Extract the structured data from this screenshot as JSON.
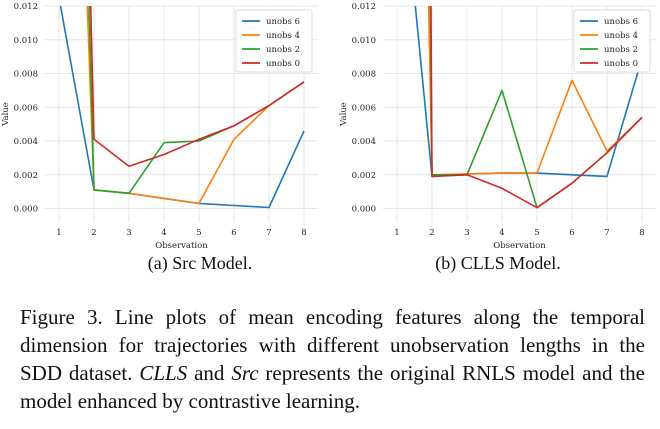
{
  "chart_data": [
    {
      "type": "line",
      "x": [
        1,
        2,
        3,
        4,
        5,
        6,
        7,
        8
      ],
      "xlabel": "Observation",
      "ylabel": "Value",
      "ylim": [
        -0.0008,
        0.012
      ],
      "yticks": [
        "0.000",
        "0.002",
        "0.004",
        "0.006",
        "0.008",
        "0.010",
        "0.012"
      ],
      "legend_position": "top-right",
      "grid": true,
      "series": [
        {
          "name": "unobs 6",
          "color": "#1f77b4",
          "points": [
            [
              1,
              0.0125
            ],
            [
              2,
              0.0011
            ],
            [
              3,
              0.0009
            ],
            [
              4,
              0.0006
            ],
            [
              5,
              0.0003
            ],
            [
              6,
              0.00018
            ],
            [
              7,
              6e-05
            ],
            [
              8,
              0.0046
            ]
          ]
        },
        {
          "name": "unobs 4",
          "color": "#ff7f0e",
          "points": [
            [
              1.8,
              0.0125
            ],
            [
              2,
              0.0011
            ],
            [
              3,
              0.0009
            ],
            [
              4,
              0.0006
            ],
            [
              5,
              0.0003
            ],
            [
              6,
              0.0041
            ],
            [
              7,
              0.0061
            ],
            [
              8,
              0.0075
            ]
          ]
        },
        {
          "name": "unobs 2",
          "color": "#2ca02c",
          "points": [
            [
              1.85,
              0.0125
            ],
            [
              2,
              0.0011
            ],
            [
              3,
              0.0009
            ],
            [
              4,
              0.0039
            ],
            [
              5,
              0.004
            ],
            [
              6,
              0.0049
            ],
            [
              7,
              0.0061
            ],
            [
              8,
              0.0075
            ]
          ]
        },
        {
          "name": "unobs 0",
          "color": "#d62728",
          "points": [
            [
              1.9,
              0.0125
            ],
            [
              2,
              0.0041
            ],
            [
              3,
              0.0025
            ],
            [
              4,
              0.0032
            ],
            [
              5,
              0.0041
            ],
            [
              6,
              0.0049
            ],
            [
              7,
              0.0061
            ],
            [
              8,
              0.0075
            ]
          ]
        }
      ]
    },
    {
      "type": "line",
      "x": [
        1,
        2,
        3,
        4,
        5,
        6,
        7,
        8
      ],
      "xlabel": "Observation",
      "ylabel": "Value",
      "ylim": [
        -0.0008,
        0.012
      ],
      "yticks": [
        "0.000",
        "0.002",
        "0.004",
        "0.006",
        "0.008",
        "0.010",
        "0.012"
      ],
      "legend_position": "top-right",
      "grid": true,
      "series": [
        {
          "name": "unobs 6",
          "color": "#1f77b4",
          "points": [
            [
              1.5,
              0.0125
            ],
            [
              2,
              0.0019
            ],
            [
              3,
              0.00205
            ],
            [
              4,
              0.0021
            ],
            [
              5,
              0.0021
            ],
            [
              6,
              0.002
            ],
            [
              7,
              0.0019
            ],
            [
              8,
              0.0089
            ]
          ]
        },
        {
          "name": "unobs 4",
          "color": "#ff7f0e",
          "points": [
            [
              1.9,
              0.0125
            ],
            [
              2,
              0.002
            ],
            [
              3,
              0.00205
            ],
            [
              4,
              0.0021
            ],
            [
              5,
              0.0021
            ],
            [
              6,
              0.0076
            ],
            [
              7,
              0.0034
            ],
            [
              8,
              0.0054
            ]
          ]
        },
        {
          "name": "unobs 2",
          "color": "#2ca02c",
          "points": [
            [
              1.95,
              0.0125
            ],
            [
              2,
              0.002
            ],
            [
              3,
              0.002
            ],
            [
              4,
              0.007
            ],
            [
              5,
              5e-05
            ],
            [
              6,
              0.0015
            ],
            [
              7,
              0.0033
            ],
            [
              8,
              0.0054
            ]
          ]
        },
        {
          "name": "unobs 0",
          "color": "#d62728",
          "points": [
            [
              1.97,
              0.0125
            ],
            [
              2,
              0.0019
            ],
            [
              3,
              0.002
            ],
            [
              4,
              0.0012
            ],
            [
              5,
              5e-05
            ],
            [
              6,
              0.0015
            ],
            [
              7,
              0.0033
            ],
            [
              8,
              0.0054
            ]
          ]
        }
      ]
    }
  ],
  "captions": {
    "a": "(a) Src Model.",
    "b": "(b) CLLS Model."
  },
  "figure_caption": {
    "part1": "Figure 3. Line plots of mean encoding features along the temporal dimension for trajectories with different unobservation lengths in the SDD dataset. ",
    "clls": "CLLS",
    "and": " and ",
    "src": "Src",
    "part2": " represents the original RNLS model and the model enhanced by contrastive learning."
  }
}
